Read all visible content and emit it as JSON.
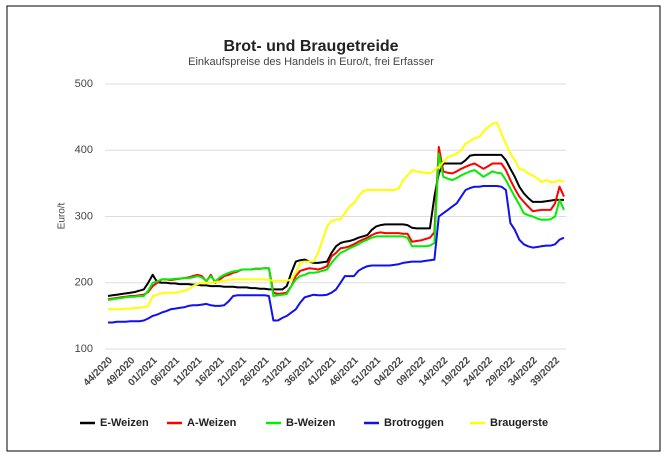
{
  "chart_data": {
    "type": "line",
    "title": "Brot- und Braugetreide",
    "subtitle": "Einkaufspreise des Handels in Euro/t, frei Erfasser",
    "y_label": "Euro/t",
    "categories": [
      "44/2020",
      null,
      null,
      null,
      null,
      "49/2020",
      null,
      null,
      null,
      null,
      "01/2021",
      null,
      null,
      null,
      null,
      "06/2021",
      null,
      null,
      null,
      null,
      "11/2021",
      null,
      null,
      null,
      null,
      "16/2021",
      null,
      null,
      null,
      null,
      "21/2021",
      null,
      null,
      null,
      null,
      "26/2021",
      null,
      null,
      null,
      null,
      "31/2021",
      null,
      null,
      null,
      null,
      "36/2021",
      null,
      null,
      null,
      null,
      "41/2021",
      null,
      null,
      null,
      null,
      "46/2021",
      null,
      null,
      null,
      null,
      "51/2021",
      null,
      null,
      null,
      null,
      "04/2022",
      null,
      null,
      null,
      null,
      "09/2022",
      null,
      null,
      null,
      null,
      "14/2022",
      null,
      null,
      null,
      null,
      "19/2022",
      null,
      null,
      null,
      null,
      "24/2022",
      null,
      null,
      null,
      null,
      "29/2022",
      null,
      null,
      null,
      null,
      "34/2022",
      null,
      null,
      null,
      null,
      "39/2022",
      null,
      null
    ],
    "series": [
      {
        "name": "E-Weizen",
        "color": "#000000",
        "values": [
          180,
          181,
          182,
          183,
          184,
          185,
          186,
          188,
          190,
          200,
          212,
          201,
          200,
          200,
          199,
          199,
          198,
          198,
          198,
          197,
          197,
          196,
          196,
          195,
          195,
          195,
          194,
          194,
          194,
          193,
          193,
          193,
          192,
          192,
          191,
          191,
          190,
          190,
          190,
          190,
          195,
          215,
          232,
          234,
          235,
          232,
          230,
          230,
          231,
          232,
          245,
          255,
          260,
          262,
          263,
          265,
          268,
          270,
          272,
          280,
          285,
          287,
          288,
          288,
          288,
          288,
          288,
          287,
          283,
          282,
          282,
          282,
          282,
          330,
          365,
          380,
          380,
          380,
          380,
          380,
          385,
          392,
          393,
          393,
          393,
          393,
          393,
          393,
          393,
          385,
          372,
          360,
          345,
          335,
          328,
          322,
          322,
          322,
          323,
          324,
          325,
          325,
          325
        ]
      },
      {
        "name": "A-Weizen",
        "color": "#ff0000",
        "values": [
          175,
          176,
          177,
          178,
          179,
          180,
          180,
          181,
          182,
          186,
          195,
          200,
          205,
          205,
          204,
          205,
          206,
          207,
          208,
          210,
          212,
          210,
          202,
          212,
          200,
          205,
          210,
          212,
          215,
          217,
          220,
          220,
          220,
          221,
          221,
          222,
          222,
          185,
          183,
          184,
          185,
          195,
          210,
          218,
          220,
          222,
          221,
          220,
          222,
          225,
          240,
          245,
          252,
          253,
          255,
          258,
          262,
          265,
          268,
          272,
          275,
          276,
          275,
          275,
          275,
          275,
          274,
          274,
          262,
          263,
          264,
          266,
          268,
          276,
          405,
          368,
          366,
          365,
          368,
          372,
          375,
          378,
          380,
          376,
          372,
          376,
          380,
          380,
          380,
          370,
          355,
          342,
          330,
          322,
          315,
          308,
          309,
          310,
          310,
          310,
          320,
          345,
          330
        ]
      },
      {
        "name": "B-Weizen",
        "color": "#00ee00",
        "values": [
          174,
          175,
          176,
          177,
          178,
          179,
          179,
          180,
          180,
          188,
          200,
          202,
          205,
          205,
          205,
          206,
          206,
          207,
          207,
          208,
          210,
          208,
          203,
          210,
          202,
          208,
          212,
          215,
          217,
          218,
          220,
          220,
          220,
          221,
          221,
          222,
          222,
          180,
          181,
          182,
          183,
          195,
          205,
          210,
          212,
          215,
          215,
          216,
          218,
          220,
          230,
          238,
          245,
          248,
          252,
          255,
          258,
          262,
          265,
          268,
          270,
          270,
          270,
          270,
          270,
          270,
          270,
          268,
          255,
          255,
          255,
          255,
          256,
          260,
          395,
          360,
          357,
          355,
          358,
          362,
          365,
          368,
          370,
          365,
          360,
          364,
          368,
          366,
          365,
          355,
          342,
          330,
          318,
          305,
          302,
          300,
          297,
          295,
          295,
          296,
          300,
          325,
          310
        ]
      },
      {
        "name": "Brotroggen",
        "color": "#1010f0",
        "values": [
          140,
          140,
          141,
          141,
          141,
          142,
          142,
          142,
          143,
          146,
          150,
          152,
          155,
          157,
          160,
          161,
          162,
          163,
          165,
          166,
          166,
          167,
          168,
          166,
          165,
          165,
          166,
          172,
          180,
          181,
          181,
          181,
          181,
          181,
          181,
          181,
          180,
          143,
          143,
          147,
          150,
          155,
          160,
          170,
          178,
          180,
          182,
          181,
          181,
          182,
          185,
          190,
          200,
          210,
          210,
          210,
          218,
          222,
          225,
          226,
          226,
          226,
          226,
          226,
          227,
          228,
          230,
          231,
          232,
          232,
          232,
          233,
          234,
          235,
          300,
          305,
          310,
          315,
          320,
          330,
          340,
          343,
          345,
          345,
          346,
          346,
          346,
          346,
          345,
          340,
          290,
          280,
          265,
          258,
          255,
          253,
          254,
          255,
          256,
          256,
          258,
          265,
          268
        ]
      },
      {
        "name": "Braugerste",
        "color": "#ffff00",
        "values": [
          160,
          160,
          160,
          160,
          161,
          161,
          162,
          162,
          163,
          165,
          180,
          182,
          184,
          185,
          185,
          185,
          186,
          188,
          190,
          195,
          198,
          200,
          200,
          200,
          201,
          202,
          203,
          204,
          205,
          205,
          205,
          205,
          205,
          205,
          205,
          205,
          204,
          203,
          203,
          203,
          203,
          205,
          215,
          230,
          232,
          232,
          232,
          245,
          265,
          285,
          293,
          295,
          296,
          305,
          315,
          320,
          330,
          338,
          340,
          340,
          340,
          340,
          340,
          340,
          340,
          342,
          355,
          362,
          370,
          368,
          367,
          366,
          365,
          370,
          375,
          382,
          390,
          392,
          395,
          400,
          410,
          414,
          418,
          420,
          428,
          435,
          440,
          442,
          425,
          410,
          395,
          385,
          372,
          370,
          365,
          362,
          358,
          352,
          355,
          352,
          352,
          355,
          352
        ]
      }
    ],
    "ylim": [
      100,
      500
    ],
    "yticks": [
      100,
      200,
      300,
      400,
      500
    ],
    "grid": true,
    "legend": "bottom"
  }
}
